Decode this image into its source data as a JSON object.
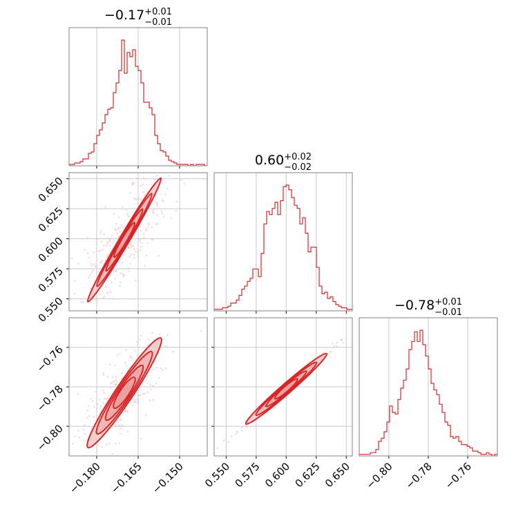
{
  "chart_data": {
    "type": "corner",
    "colors": {
      "series": "#d62728",
      "fill": "#f4c9ca",
      "axes": "#808080",
      "grid": "#c8c8c8"
    },
    "grid": true,
    "parameters": [
      {
        "median": -0.17,
        "titles": {
          "main": "−0.17",
          "sup": "+0.01",
          "sub": "−0.01"
        },
        "range": [
          -0.19,
          -0.14
        ],
        "ticks": [
          -0.18,
          -0.165,
          -0.15
        ],
        "tick_labels": [
          "−0.180",
          "−0.165",
          "−0.150"
        ]
      },
      {
        "median": 0.6,
        "titles": {
          "main": "0.60",
          "sup": "+0.02",
          "sub": "−0.02"
        },
        "range": [
          0.54,
          0.655
        ],
        "ticks": [
          0.55,
          0.575,
          0.6,
          0.625,
          0.65
        ],
        "tick_labels": [
          "0.550",
          "0.575",
          "0.600",
          "0.625",
          "0.650"
        ]
      },
      {
        "median": -0.78,
        "titles": {
          "main": "−0.78",
          "sup": "+0.01",
          "sub": "−0.01"
        },
        "range": [
          -0.815,
          -0.745
        ],
        "ticks": [
          -0.8,
          -0.78,
          -0.76
        ],
        "tick_labels": [
          "−0.80",
          "−0.78",
          "−0.76"
        ]
      }
    ],
    "histograms": [
      {
        "param": 0,
        "counts": [
          1,
          1,
          2,
          2,
          3,
          5,
          5,
          9,
          10,
          16,
          22,
          26,
          31,
          37,
          41,
          42,
          53,
          60,
          69,
          91,
          67,
          82,
          79,
          84,
          72,
          69,
          60,
          46,
          46,
          42,
          37,
          22,
          16,
          11,
          10,
          7,
          4,
          3,
          2,
          1,
          1,
          1,
          1,
          0,
          1,
          0,
          1,
          1,
          1,
          0
        ]
      },
      {
        "param": 1,
        "counts": [
          1,
          1,
          1,
          2,
          2,
          3,
          5,
          5,
          7,
          10,
          14,
          16,
          19,
          21,
          27,
          27,
          22,
          37,
          56,
          64,
          62,
          66,
          70,
          62,
          71,
          80,
          81,
          78,
          73,
          68,
          66,
          56,
          60,
          50,
          38,
          41,
          41,
          28,
          16,
          11,
          12,
          8,
          9,
          6,
          4,
          3,
          2,
          2,
          1,
          1
        ]
      },
      {
        "param": 2,
        "counts": [
          1,
          1,
          1,
          1,
          2,
          2,
          4,
          9,
          11,
          15,
          21,
          31,
          27,
          26,
          35,
          42,
          47,
          54,
          66,
          71,
          77,
          71,
          78,
          69,
          62,
          54,
          45,
          41,
          38,
          32,
          27,
          21,
          19,
          12,
          11,
          12,
          9,
          7,
          7,
          6,
          5,
          3,
          3,
          2,
          1,
          1,
          2,
          1,
          0,
          1
        ]
      }
    ],
    "pairs": [
      {
        "x": 1,
        "y": 0,
        "slope": 3.9,
        "intercept": 1.262,
        "sigma_x": 0.0055,
        "sigma_perp": 0.0045
      },
      {
        "x": 2,
        "y": 0,
        "slope": 2.1,
        "intercept": -0.426,
        "sigma_x": 0.0055,
        "sigma_perp": 0.0035
      },
      {
        "x": 2,
        "y": 1,
        "slope": 0.53,
        "intercept": -1.099,
        "sigma_x": 0.014,
        "sigma_perp": 0.0008
      }
    ]
  }
}
